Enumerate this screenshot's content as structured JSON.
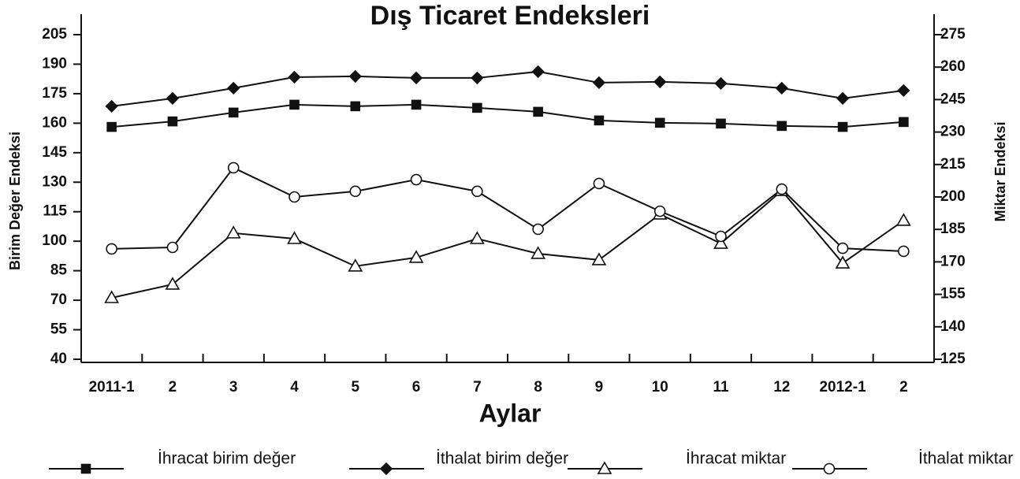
{
  "chart_data": {
    "type": "line",
    "title": "Dış Ticaret Endeksleri",
    "xlabel": "Aylar",
    "ylabel": "Birim Değer Endeksi",
    "y2label": "Miktar Endeksi",
    "categories": [
      "2011-1",
      "2",
      "3",
      "4",
      "5",
      "6",
      "7",
      "8",
      "9",
      "10",
      "11",
      "12",
      "2012-1",
      "2"
    ],
    "ylim": [
      40,
      205
    ],
    "yticks": [
      40,
      55,
      70,
      85,
      100,
      115,
      130,
      145,
      160,
      175,
      190,
      205
    ],
    "y2lim": [
      125,
      275
    ],
    "y2ticks": [
      125,
      140,
      155,
      170,
      185,
      200,
      215,
      230,
      245,
      260,
      275
    ],
    "legend": "bottom",
    "series": [
      {
        "name": "İhracat birim değer",
        "color": "#111111",
        "marker": "square",
        "values": [
          158.1,
          160.9,
          165.4,
          169.4,
          168.6,
          169.4,
          167.8,
          165.8,
          161.4,
          160.2,
          159.8,
          158.6,
          158.1,
          160.6
        ]
      },
      {
        "name": "İthalat birim değer",
        "color": "#111111",
        "marker": "diamond",
        "values": [
          168.6,
          172.6,
          177.8,
          183.4,
          183.8,
          183.0,
          183.0,
          186.2,
          180.6,
          181.0,
          180.2,
          177.8,
          172.6,
          176.6
        ]
      },
      {
        "name": "İhracat miktar",
        "color": "#111111",
        "marker": "triangle",
        "axis": "y2",
        "values": [
          153.4,
          159.6,
          183.3,
          180.7,
          168.0,
          172.0,
          180.7,
          173.8,
          170.9,
          192.0,
          178.5,
          202.9,
          169.4,
          189.1
        ]
      },
      {
        "name": "İthalat miktar",
        "color": "#111111",
        "marker": "circle",
        "axis": "y2",
        "values": [
          176.0,
          176.7,
          213.5,
          200.0,
          202.6,
          208.0,
          202.6,
          185.1,
          206.2,
          193.4,
          181.8,
          203.6,
          176.3,
          174.9
        ]
      }
    ]
  }
}
